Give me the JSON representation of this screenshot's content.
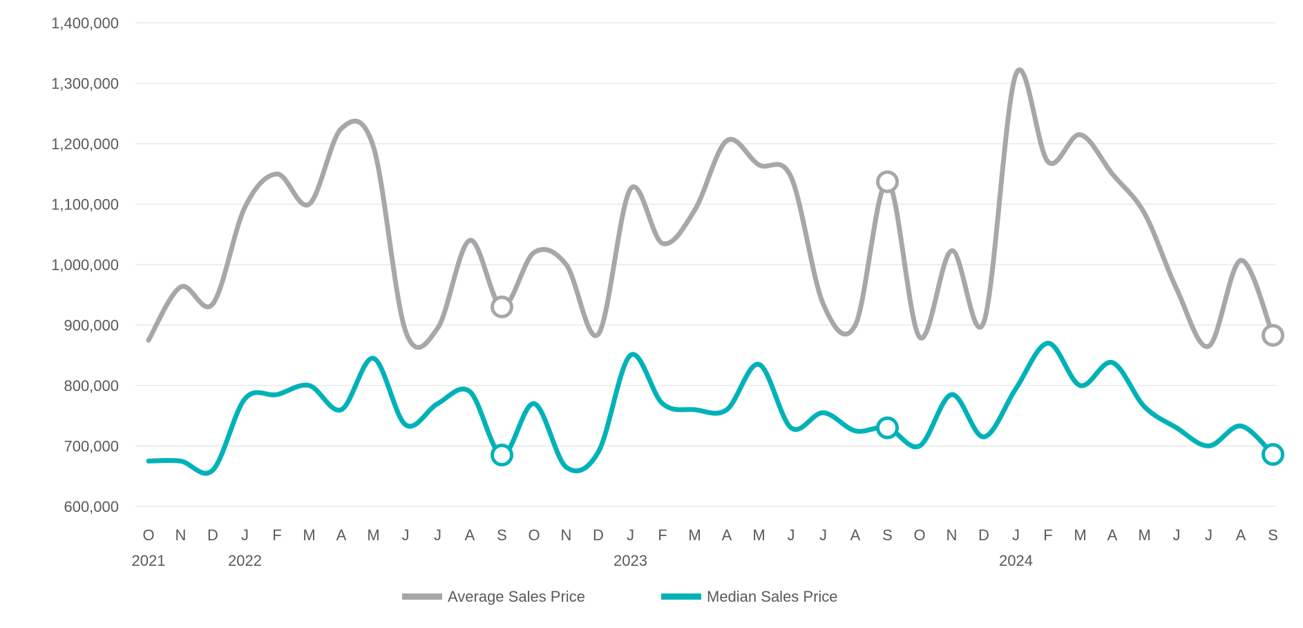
{
  "chart_data": {
    "type": "line",
    "title": "",
    "xlabel": "",
    "ylabel": "",
    "ylim": [
      600000,
      1400000
    ],
    "yticks": [
      600000,
      700000,
      800000,
      900000,
      1000000,
      1100000,
      1200000,
      1300000,
      1400000
    ],
    "ytick_labels": [
      "600,000",
      "700,000",
      "800,000",
      "900,000",
      "1,000,000",
      "1,100,000",
      "1,200,000",
      "1,300,000",
      "1,400,000"
    ],
    "categories": [
      "O",
      "N",
      "D",
      "J",
      "F",
      "M",
      "A",
      "M",
      "J",
      "J",
      "A",
      "S",
      "O",
      "N",
      "D",
      "J",
      "F",
      "M",
      "A",
      "M",
      "J",
      "J",
      "A",
      "S",
      "O",
      "N",
      "D",
      "J",
      "F",
      "M",
      "A",
      "M",
      "J",
      "J",
      "A",
      "S"
    ],
    "year_labels": [
      {
        "index": 0,
        "label": "2021"
      },
      {
        "index": 3,
        "label": "2022"
      },
      {
        "index": 15,
        "label": "2023"
      },
      {
        "index": 27,
        "label": "2024"
      }
    ],
    "grid": true,
    "legend_position": "bottom",
    "series": [
      {
        "name": "Average Sales Price",
        "color": "#a7a7ab",
        "values": [
          875000,
          963000,
          935000,
          1095000,
          1150000,
          1100000,
          1225000,
          1195000,
          890000,
          895000,
          1040000,
          930000,
          1020000,
          1000000,
          885000,
          1125000,
          1035000,
          1090000,
          1205000,
          1165000,
          1145000,
          935000,
          900000,
          1137000,
          880000,
          1023000,
          905000,
          1315000,
          1170000,
          1215000,
          1150000,
          1085000,
          960000,
          865000,
          1007000,
          883000
        ],
        "highlight_indices": [
          11,
          23,
          35
        ]
      },
      {
        "name": "Median Sales Price",
        "color": "#00b2b8",
        "values": [
          675000,
          675000,
          660000,
          778000,
          785000,
          800000,
          760000,
          845000,
          735000,
          770000,
          790000,
          685000,
          770000,
          665000,
          690000,
          850000,
          770000,
          760000,
          760000,
          835000,
          730000,
          755000,
          725000,
          730000,
          700000,
          785000,
          715000,
          795000,
          870000,
          800000,
          838000,
          765000,
          730000,
          700000,
          733000,
          686000
        ],
        "highlight_indices": [
          11,
          23,
          35
        ]
      }
    ]
  }
}
